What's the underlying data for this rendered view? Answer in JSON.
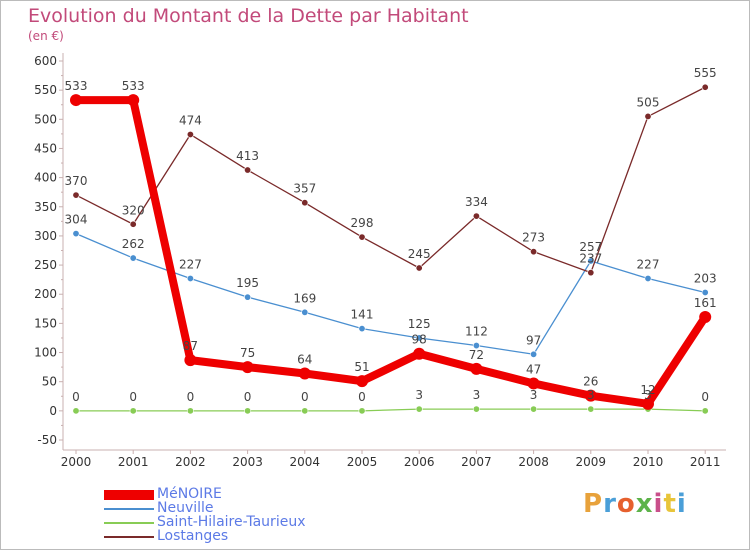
{
  "header": {
    "title": "Evolution du Montant de la Dette par Habitant",
    "unit": "(en €)"
  },
  "logo": {
    "text": "Proxiti",
    "colors": [
      "#e8a23b",
      "#4a9fd8",
      "#e6602e",
      "#5db34a",
      "#c94f8a",
      "#e8c53a",
      "#4a9fd8"
    ]
  },
  "chart_data": {
    "type": "line",
    "title": "Evolution du Montant de la Dette par Habitant",
    "ylabel": "(en €)",
    "xlabel": "",
    "x": [
      "2000",
      "2001",
      "2002",
      "2003",
      "2004",
      "2005",
      "2006",
      "2007",
      "2008",
      "2009",
      "2010",
      "2011"
    ],
    "ylim": [
      -50,
      600
    ],
    "yticks": [
      "-50",
      "0",
      "50",
      "100",
      "150",
      "200",
      "250",
      "300",
      "350",
      "400",
      "450",
      "500",
      "550",
      "600"
    ],
    "grid": false,
    "legend": "bottom-left",
    "series": [
      {
        "name": "MéNOIRE",
        "color": "#ee0000",
        "values": [
          533,
          533,
          87,
          75,
          64,
          51,
          98,
          72,
          47,
          26,
          12,
          161
        ],
        "labels": [
          "533",
          "533",
          "87",
          "75",
          "64",
          "51",
          "98",
          "72",
          "47",
          "26",
          "12",
          "161"
        ]
      },
      {
        "name": "Neuville",
        "color": "#4a8fd0",
        "values": [
          304,
          262,
          227,
          195,
          169,
          141,
          125,
          112,
          97,
          257,
          227,
          203
        ],
        "labels": [
          "304",
          "262",
          "227",
          "195",
          "169",
          "141",
          "125",
          "112",
          "97",
          "257",
          "227",
          "203"
        ]
      },
      {
        "name": "Saint-Hilaire-Taurieux",
        "color": "#88cc55",
        "values": [
          0,
          0,
          0,
          0,
          0,
          0,
          3,
          3,
          3,
          3,
          3,
          0
        ],
        "labels": [
          "0",
          "0",
          "0",
          "0",
          "0",
          "0",
          "3",
          "3",
          "3",
          "3",
          "3",
          "0"
        ]
      },
      {
        "name": "Lostanges",
        "color": "#7a2a2a",
        "values": [
          370,
          320,
          474,
          413,
          357,
          298,
          245,
          334,
          273,
          237,
          505,
          555
        ],
        "labels": [
          "370",
          "320",
          "474",
          "413",
          "357",
          "298",
          "245",
          "334",
          "273",
          "237",
          "505",
          "555"
        ]
      }
    ]
  }
}
